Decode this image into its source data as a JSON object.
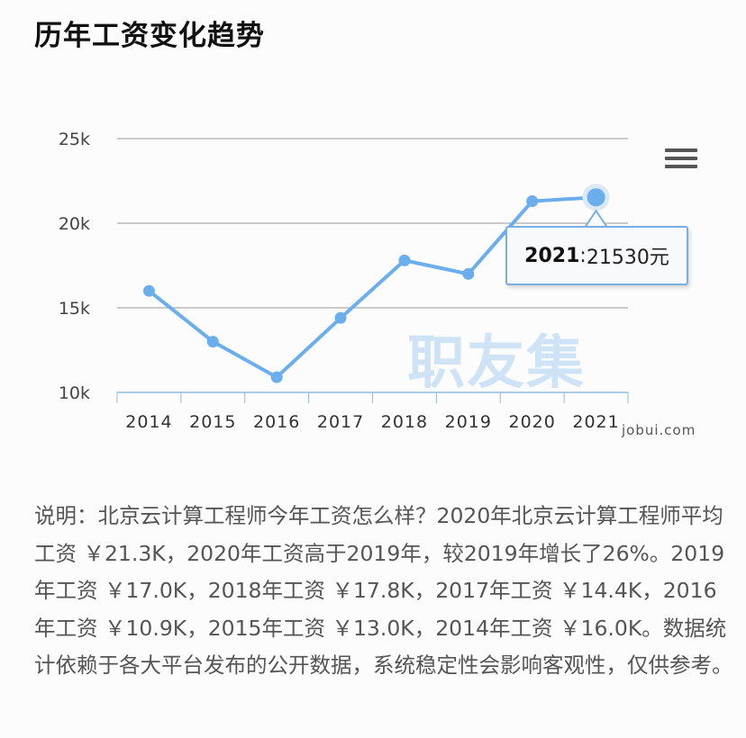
{
  "title": "历年工资变化趋势",
  "chart_data": {
    "type": "line",
    "title": "历年工资变化趋势",
    "categories": [
      "2014",
      "2015",
      "2016",
      "2017",
      "2018",
      "2019",
      "2020",
      "2021"
    ],
    "values": [
      16000,
      13000,
      10900,
      14400,
      17800,
      17000,
      21300,
      21530
    ],
    "ylim": [
      10000,
      25000
    ],
    "yticks": [
      {
        "value": 10000,
        "label": "10k"
      },
      {
        "value": 15000,
        "label": "15k"
      },
      {
        "value": 20000,
        "label": "20k"
      },
      {
        "value": 25000,
        "label": "25k"
      }
    ],
    "grid": true,
    "line_color": "#6aaeed",
    "tooltip": {
      "year": "2021",
      "value": "21530元",
      "separator": ":"
    }
  },
  "menu_icon": "hamburger-menu-icon",
  "watermark": "职友集",
  "site": "jobui.com",
  "description": "说明：北京云计算工程师今年工资怎么样？2020年北京云计算工程师平均工资 ￥21.3K，2020年工资高于2019年，较2019年增长了26%。2019年工资 ￥17.0K，2018年工资 ￥17.8K，2017年工资 ￥14.4K，2016年工资 ￥10.9K，2015年工资 ￥13.0K，2014年工资 ￥16.0K。数据统计依赖于各大平台发布的公开数据，系统稳定性会影响客观性，仅供参考。"
}
